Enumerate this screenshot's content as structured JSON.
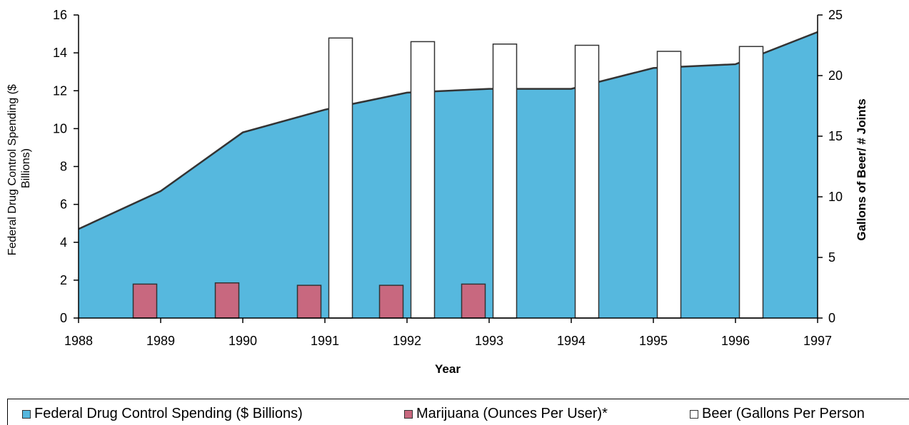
{
  "colors": {
    "spending": "#56b8de",
    "marijuana": "#c8687f",
    "beer": "#ffffff",
    "outline": "#333333"
  },
  "legend": {
    "spending": "Federal Drug Control Spending ($ Billions)",
    "marijuana": "Marijuana (Ounces Per User)*",
    "beer": "Beer (Gallons Per Person"
  },
  "chart_data": {
    "type": "area",
    "title": "",
    "xlabel": "Year",
    "ylabel_left": "Federal Drug Control Spending ($ Billions)",
    "ylabel_right": "Gallons of Beer/ # Joints",
    "x_ticks": [
      "1988",
      "1989",
      "1990",
      "1991",
      "1992",
      "1993",
      "1994",
      "1995",
      "1996",
      "1997"
    ],
    "ylim_left": [
      0,
      16
    ],
    "yticks_left": [
      "0",
      "2",
      "4",
      "6",
      "8",
      "10",
      "12",
      "14",
      "16"
    ],
    "ylim_right": [
      0,
      25
    ],
    "yticks_right": [
      "0",
      "5",
      "10",
      "15",
      "20",
      "25"
    ],
    "series": [
      {
        "name": "Federal Drug Control Spending ($ Billions)",
        "axis": "left",
        "type": "area",
        "x": [
          1988,
          1989,
          1990,
          1991,
          1992,
          1993,
          1994,
          1995,
          1996,
          1997
        ],
        "values": [
          4.7,
          6.7,
          9.8,
          11.0,
          11.9,
          12.1,
          12.1,
          13.2,
          13.4,
          15.1
        ]
      },
      {
        "name": "Marijuana (Ounces Per User)*",
        "axis": "right",
        "type": "bar",
        "x": [
          1989,
          1990,
          1991,
          1992,
          1993
        ],
        "values": [
          2.8,
          2.9,
          2.7,
          2.7,
          2.8
        ]
      },
      {
        "name": "Beer (Gallons Per Person",
        "axis": "right",
        "type": "bar",
        "x": [
          1991,
          1992,
          1993,
          1994,
          1995,
          1996
        ],
        "values": [
          23.1,
          22.8,
          22.6,
          22.5,
          22.0,
          22.4
        ]
      }
    ],
    "legend_position": "bottom",
    "grid": false
  }
}
